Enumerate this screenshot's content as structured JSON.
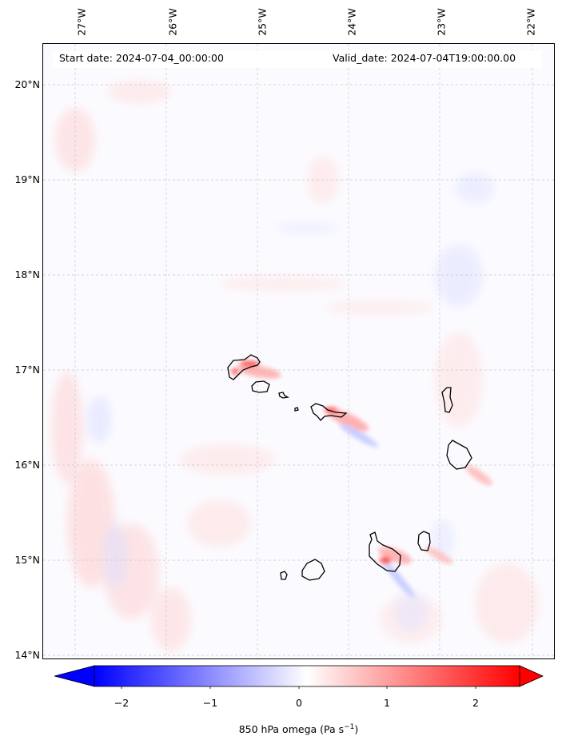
{
  "header": {
    "start": "Start date: 2024-07-04_00:00:00",
    "valid": "Valid_date: 2024-07-04T19:00:00.00"
  },
  "lon_labels": [
    "27°W",
    "26°W",
    "25°W",
    "24°W",
    "23°W",
    "22°W"
  ],
  "lat_labels": [
    "20°N",
    "19°N",
    "18°N",
    "17°N",
    "16°N",
    "15°N",
    "14°N"
  ],
  "colorbar": {
    "ticks": [
      "−2",
      "−1",
      "0",
      "1",
      "2"
    ],
    "label": "850 hPa omega (Pa s",
    "label_sup": "−1",
    "label_end": ")",
    "range": [
      -2.5,
      2.5
    ],
    "colors": {
      "low": "#0000ff",
      "mid": "#ffffff",
      "high": "#ff0000"
    }
  },
  "map": {
    "extent_lon": [
      -27.33,
      -21.75
    ],
    "extent_lat": [
      13.95,
      20.4
    ],
    "coastline_color": "#000000",
    "grid": "dashed gray"
  }
}
